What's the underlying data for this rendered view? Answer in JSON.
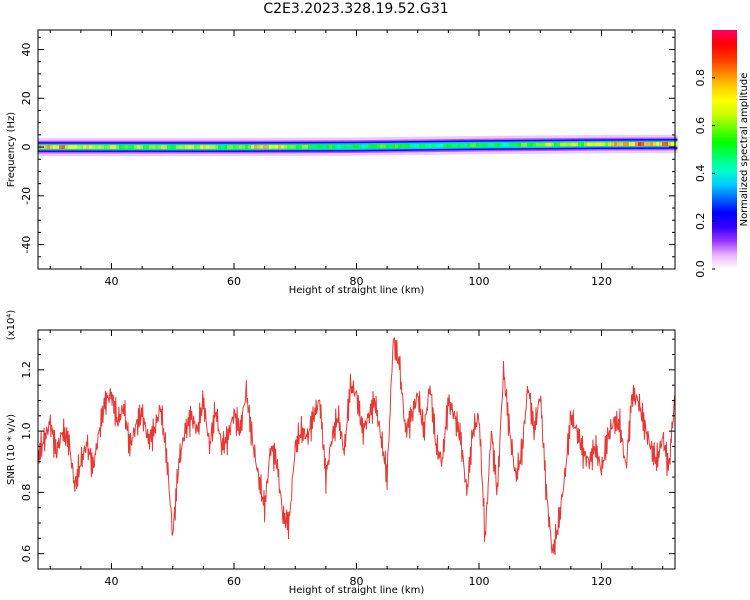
{
  "title": "C2E3.2023.328.19.52.G31",
  "chart_data": [
    {
      "type": "heatmap",
      "xlabel": "Height of straight line (km)",
      "ylabel": "Frequency (Hz)",
      "xlim": [
        28,
        132
      ],
      "ylim": [
        -50,
        48
      ],
      "xticks": [
        40,
        60,
        80,
        100,
        120
      ],
      "yticks": [
        -40,
        -20,
        0,
        20,
        40
      ],
      "colorbar": {
        "label": "Normalized spectral amplitude",
        "range": [
          0,
          1
        ],
        "ticks": [
          0.0,
          0.2,
          0.4,
          0.6,
          0.8
        ],
        "colors": [
          "#ffffff",
          "#e6b3ff",
          "#9933ff",
          "#3300ff",
          "#0000ff",
          "#0066ff",
          "#00ccff",
          "#00ffcc",
          "#00ff66",
          "#00ff00",
          "#66ff00",
          "#ccff00",
          "#ffff00",
          "#ffcc00",
          "#ff8000",
          "#ff3300",
          "#ff0000",
          "#ff0066"
        ]
      },
      "band": {
        "center_hz": [
          [
            28,
            0.0
          ],
          [
            40,
            0.0
          ],
          [
            60,
            0.0
          ],
          [
            80,
            0.2
          ],
          [
            90,
            0.5
          ],
          [
            100,
            0.8
          ],
          [
            110,
            1.0
          ],
          [
            120,
            1.2
          ],
          [
            132,
            1.3
          ]
        ],
        "half_width_hz": 2.5,
        "peaks": [
          [
            28,
            0.85
          ],
          [
            31,
            0.9
          ],
          [
            34,
            0.8
          ],
          [
            37,
            0.75
          ],
          [
            40,
            0.7
          ],
          [
            43,
            0.65
          ],
          [
            46,
            0.7
          ],
          [
            50,
            0.65
          ],
          [
            55,
            0.8
          ],
          [
            58,
            0.6
          ],
          [
            62,
            0.7
          ],
          [
            65,
            0.9
          ],
          [
            69,
            0.7
          ],
          [
            73,
            0.6
          ],
          [
            78,
            0.55
          ],
          [
            82,
            0.55
          ],
          [
            85,
            0.65
          ],
          [
            88,
            0.55
          ],
          [
            92,
            0.5
          ],
          [
            96,
            0.55
          ],
          [
            100,
            0.6
          ],
          [
            104,
            0.5
          ],
          [
            108,
            0.65
          ],
          [
            112,
            0.7
          ],
          [
            116,
            0.7
          ],
          [
            120,
            0.75
          ],
          [
            124,
            0.9
          ],
          [
            128,
            0.9
          ],
          [
            132,
            0.85
          ]
        ]
      }
    },
    {
      "type": "line",
      "xlabel": "Height of straight line (km)",
      "ylabel": "SNR (10 * v/v)",
      "multiplier_label": "(x10⁴)",
      "xlim": [
        28,
        132
      ],
      "ylim": [
        0.55,
        1.33
      ],
      "xticks": [
        40,
        60,
        80,
        100,
        120
      ],
      "yticks": [
        0.6,
        0.8,
        1.0,
        1.2
      ],
      "line_color": "#e53935",
      "series": [
        {
          "x": [
            28,
            29,
            30,
            31,
            32,
            33,
            34,
            35,
            36,
            37,
            38,
            39,
            40,
            41,
            42,
            43,
            44,
            45,
            46,
            47,
            48,
            49,
            50,
            51,
            52,
            53,
            54,
            55,
            56,
            57,
            58,
            59,
            60,
            61,
            62,
            63,
            64,
            65,
            66,
            67,
            68,
            69,
            70,
            71,
            72,
            73,
            74,
            75,
            76,
            77,
            78,
            79,
            80,
            81,
            82,
            83,
            84,
            85,
            86,
            87,
            88,
            89,
            90,
            91,
            92,
            93,
            94,
            95,
            96,
            97,
            98,
            99,
            100,
            101,
            102,
            103,
            104,
            105,
            106,
            107,
            108,
            109,
            110,
            111,
            112,
            113,
            114,
            115,
            116,
            117,
            118,
            119,
            120,
            121,
            122,
            123,
            124,
            125,
            126,
            127,
            128,
            129,
            130,
            131,
            132
          ],
          "values": [
            0.92,
            0.97,
            1.03,
            0.93,
            1.0,
            0.97,
            0.82,
            0.9,
            0.96,
            0.88,
            1.0,
            1.1,
            1.12,
            1.03,
            1.08,
            0.95,
            1.02,
            1.06,
            0.97,
            1.0,
            1.08,
            0.92,
            0.66,
            0.9,
            1.0,
            1.05,
            1.0,
            1.1,
            0.95,
            1.07,
            0.95,
            0.98,
            1.06,
            1.0,
            1.13,
            0.97,
            0.85,
            0.75,
            0.95,
            0.9,
            0.72,
            0.7,
            0.95,
            1.0,
            0.98,
            1.05,
            1.1,
            0.85,
            0.98,
            1.05,
            0.93,
            1.15,
            1.12,
            1.0,
            1.05,
            1.1,
            0.98,
            0.85,
            1.3,
            1.22,
            1.0,
            1.05,
            1.12,
            1.0,
            1.15,
            0.95,
            0.9,
            1.1,
            1.05,
            0.98,
            0.8,
            1.0,
            1.05,
            0.65,
            1.0,
            0.8,
            1.2,
            1.0,
            0.85,
            0.93,
            1.15,
            1.0,
            1.12,
            0.8,
            0.6,
            0.7,
            0.85,
            1.05,
            1.0,
            0.93,
            0.9,
            0.95,
            0.87,
            0.98,
            1.03,
            1.02,
            0.88,
            1.12,
            1.1,
            1.02,
            0.95,
            0.9,
            0.98,
            0.88,
            1.12
          ]
        }
      ]
    }
  ]
}
